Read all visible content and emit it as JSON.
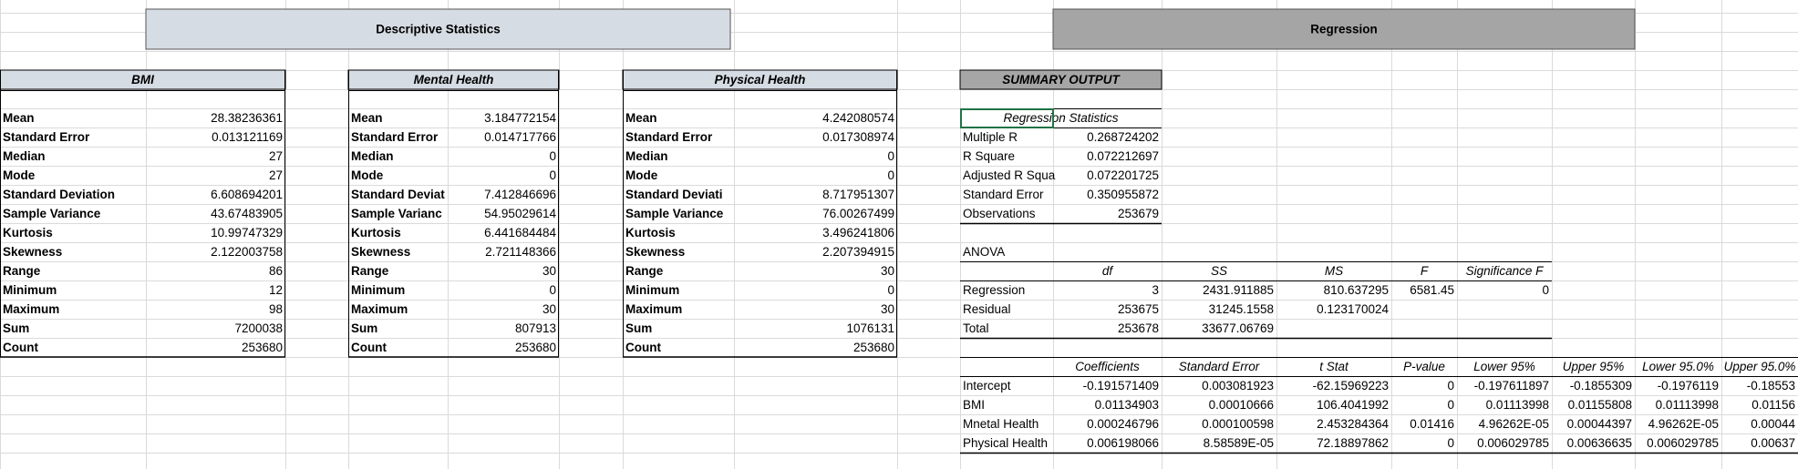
{
  "sections": {
    "descriptive_title": "Descriptive Statistics",
    "regression_title": "Regression"
  },
  "descriptive": [
    {
      "title": "BMI",
      "rows": [
        [
          "Mean",
          "28.38236361"
        ],
        [
          "Standard Error",
          "0.013121169"
        ],
        [
          "Median",
          "27"
        ],
        [
          "Mode",
          "27"
        ],
        [
          "Standard Deviation",
          "6.608694201"
        ],
        [
          "Sample Variance",
          "43.67483905"
        ],
        [
          "Kurtosis",
          "10.99747329"
        ],
        [
          "Skewness",
          "2.122003758"
        ],
        [
          "Range",
          "86"
        ],
        [
          "Minimum",
          "12"
        ],
        [
          "Maximum",
          "98"
        ],
        [
          "Sum",
          "7200038"
        ],
        [
          "Count",
          "253680"
        ]
      ]
    },
    {
      "title": "Mental Health",
      "rows": [
        [
          "Mean",
          "3.184772154"
        ],
        [
          "Standard Error",
          "0.014717766"
        ],
        [
          "Median",
          "0"
        ],
        [
          "Mode",
          "0"
        ],
        [
          "Standard Deviat",
          "7.412846696"
        ],
        [
          "Sample Varianc",
          "54.95029614"
        ],
        [
          "Kurtosis",
          "6.441684484"
        ],
        [
          "Skewness",
          "2.721148366"
        ],
        [
          "Range",
          "30"
        ],
        [
          "Minimum",
          "0"
        ],
        [
          "Maximum",
          "30"
        ],
        [
          "Sum",
          "807913"
        ],
        [
          "Count",
          "253680"
        ]
      ]
    },
    {
      "title": "Physical Health",
      "rows": [
        [
          "Mean",
          "4.242080574"
        ],
        [
          "Standard Error",
          "0.017308974"
        ],
        [
          "Median",
          "0"
        ],
        [
          "Mode",
          "0"
        ],
        [
          "Standard Deviati",
          "8.717951307"
        ],
        [
          "Sample Variance",
          "76.00267499"
        ],
        [
          "Kurtosis",
          "3.496241806"
        ],
        [
          "Skewness",
          "2.207394915"
        ],
        [
          "Range",
          "30"
        ],
        [
          "Minimum",
          "0"
        ],
        [
          "Maximum",
          "30"
        ],
        [
          "Sum",
          "1076131"
        ],
        [
          "Count",
          "253680"
        ]
      ]
    }
  ],
  "summary": {
    "title": "SUMMARY OUTPUT",
    "regression_statistics": {
      "title": "Regression Statistics",
      "rows": [
        [
          "Multiple R",
          "0.268724202"
        ],
        [
          "R Square",
          "0.072212697"
        ],
        [
          "Adjusted R Squa",
          "0.072201725"
        ],
        [
          "Standard Error",
          "0.350955872"
        ],
        [
          "Observations",
          "253679"
        ]
      ]
    },
    "anova": {
      "title": "ANOVA",
      "columns": [
        "df",
        "SS",
        "MS",
        "F",
        "Significance F"
      ],
      "rows": [
        [
          "Regression",
          "3",
          "2431.911885",
          "810.637295",
          "6581.45",
          "0"
        ],
        [
          "Residual",
          "253675",
          "31245.1558",
          "0.123170024"
        ],
        [
          "Total",
          "253678",
          "33677.06769"
        ]
      ]
    },
    "coefficients": {
      "columns": [
        "Coefficients",
        "Standard Error",
        "t Stat",
        "P-value",
        "Lower 95%",
        "Upper 95%",
        "Lower 95.0%",
        "Upper 95.0%"
      ],
      "rows": [
        [
          "Intercept",
          "-0.191571409",
          "0.003081923",
          "-62.15969223",
          "0",
          "-0.197611897",
          "-0.1855309",
          "-0.1976119",
          "-0.18553"
        ],
        [
          "BMI",
          "0.01134903",
          "0.00010666",
          "106.4041992",
          "0",
          "0.01113998",
          "0.01155808",
          "0.01113998",
          "0.01156"
        ],
        [
          "Mnetal Health",
          "0.000246796",
          "0.000100598",
          "2.453284364",
          "0.01416",
          "4.96262E-05",
          "0.00044397",
          "4.96262E-05",
          "0.00044"
        ],
        [
          "Physical Health",
          "0.006198066",
          "8.58589E-05",
          "72.18897862",
          "0",
          "0.006029785",
          "0.00636635",
          "0.006029785",
          "0.00637"
        ]
      ]
    }
  }
}
